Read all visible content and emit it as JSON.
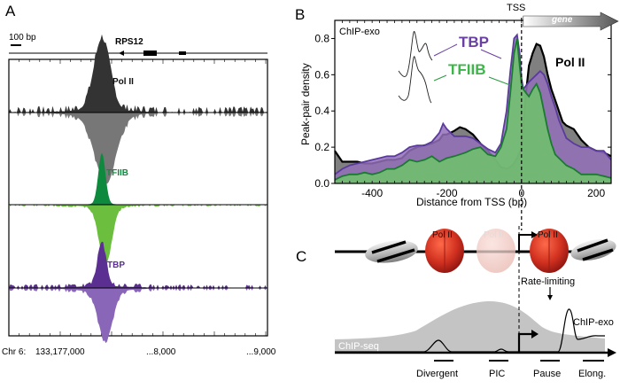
{
  "panels": {
    "A": {
      "letter": "A",
      "scale_label": "100 bp",
      "gene_name": "RPS12",
      "tracks": [
        {
          "name": "Pol II",
          "color_fwd": "#333333",
          "color_rev": "#777777"
        },
        {
          "name": "TFIIB",
          "color_fwd": "#0e8a3e",
          "color_rev": "#6cbf3e"
        },
        {
          "name": "TBP",
          "color_fwd": "#5b2f91",
          "color_rev": "#8a66b8"
        }
      ],
      "axis": {
        "chrom_label": "Chr 6:",
        "ticks": [
          "133,177,000",
          "...8,000",
          "...9,000"
        ]
      }
    },
    "B": {
      "letter": "B",
      "tss_label": "TSS",
      "gene_label": "gene",
      "inset_label": "ChIP-exo",
      "series_labels": {
        "tbp": "TBP",
        "tfiib": "TFIIB",
        "pol2": "Pol II"
      }
    },
    "C": {
      "letter": "C",
      "pol2_labels": [
        "Pol II",
        "Pol II",
        "Pol II"
      ],
      "rate_limiting_label": "Rate-limiting",
      "chipexo_label": "ChIP-exo",
      "chipseq_label": "ChIP-seq",
      "stage_labels": [
        "Divergent",
        "PIC",
        "Pause",
        "Elong."
      ]
    }
  },
  "chart_data": {
    "type": "area",
    "title": "",
    "xlabel": "Distance from TSS (bp)",
    "ylabel": "Peak-pair density",
    "xlim": [
      -500,
      240
    ],
    "ylim": [
      0,
      0.9
    ],
    "xticks": [
      -400,
      -200,
      0,
      200
    ],
    "xtick_labels": [
      "-400",
      "-200",
      "0",
      "200"
    ],
    "yticks": [
      0.0,
      0.2,
      0.4,
      0.6,
      0.8
    ],
    "ytick_labels": [
      "0.0",
      "0.2",
      "0.4",
      "0.6",
      "0.8"
    ],
    "grid": false,
    "x": [
      -500,
      -480,
      -460,
      -440,
      -420,
      -400,
      -380,
      -360,
      -340,
      -320,
      -300,
      -280,
      -260,
      -240,
      -220,
      -210,
      -200,
      -180,
      -165,
      -150,
      -130,
      -110,
      -90,
      -70,
      -55,
      -40,
      -30,
      -20,
      -12,
      -5,
      0,
      5,
      12,
      20,
      30,
      40,
      50,
      60,
      70,
      80,
      90,
      100,
      110,
      120,
      140,
      160,
      180,
      200,
      220,
      240
    ],
    "series": [
      {
        "name": "Pol II",
        "color": "#808080",
        "line": "#000000",
        "values": [
          0.18,
          0.12,
          0.12,
          0.12,
          0.11,
          0.11,
          0.12,
          0.13,
          0.13,
          0.14,
          0.18,
          0.2,
          0.21,
          0.22,
          0.24,
          0.27,
          0.27,
          0.29,
          0.31,
          0.3,
          0.27,
          0.22,
          0.18,
          0.13,
          0.09,
          0.08,
          0.09,
          0.11,
          0.14,
          0.17,
          0.2,
          0.3,
          0.5,
          0.65,
          0.72,
          0.77,
          0.76,
          0.7,
          0.6,
          0.52,
          0.46,
          0.4,
          0.34,
          0.32,
          0.3,
          0.24,
          0.2,
          0.18,
          0.17,
          0.15
        ]
      },
      {
        "name": "TBP",
        "color": "#9370b8",
        "line": "#5b3a9e",
        "values": [
          0.05,
          0.08,
          0.1,
          0.11,
          0.12,
          0.13,
          0.14,
          0.15,
          0.15,
          0.17,
          0.2,
          0.21,
          0.21,
          0.23,
          0.28,
          0.33,
          0.3,
          0.26,
          0.26,
          0.26,
          0.25,
          0.22,
          0.19,
          0.17,
          0.22,
          0.4,
          0.62,
          0.8,
          0.82,
          0.72,
          0.58,
          0.52,
          0.54,
          0.56,
          0.58,
          0.6,
          0.62,
          0.6,
          0.55,
          0.48,
          0.42,
          0.35,
          0.3,
          0.25,
          0.22,
          0.2,
          0.2,
          0.18,
          0.18,
          0.13
        ]
      },
      {
        "name": "TFIIB",
        "color": "#6fc36a",
        "line": "#1a7a30",
        "values": [
          0.02,
          0.04,
          0.05,
          0.05,
          0.06,
          0.05,
          0.06,
          0.08,
          0.08,
          0.1,
          0.13,
          0.12,
          0.13,
          0.15,
          0.12,
          0.13,
          0.14,
          0.15,
          0.16,
          0.17,
          0.19,
          0.2,
          0.16,
          0.15,
          0.2,
          0.3,
          0.5,
          0.72,
          0.8,
          0.65,
          0.55,
          0.52,
          0.5,
          0.48,
          0.52,
          0.55,
          0.5,
          0.4,
          0.3,
          0.22,
          0.16,
          0.14,
          0.12,
          0.1,
          0.08,
          0.05,
          0.05,
          0.05,
          0.04,
          0.03
        ]
      }
    ],
    "annotations": [
      "TSS",
      "gene",
      "ChIP-exo",
      "TBP",
      "TFIIB",
      "Pol II"
    ]
  }
}
